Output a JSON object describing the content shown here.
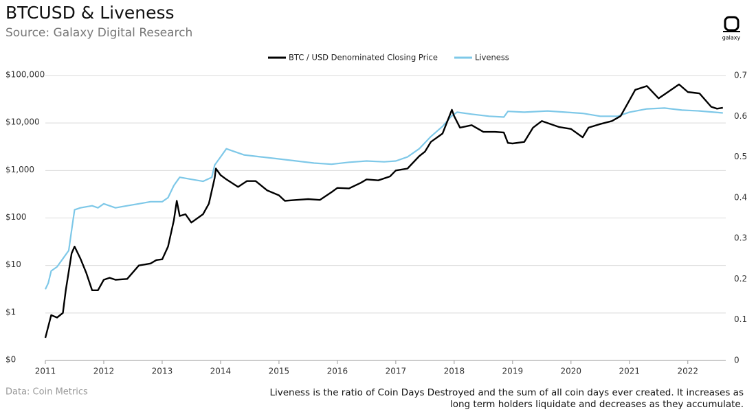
{
  "chart_data": {
    "type": "line",
    "title": "BTCUSD & Liveness",
    "subtitle": "Source: Galaxy Digital Research",
    "logo": "galaxy",
    "source": "Data: Coin Metrics",
    "note": "Liveness is the ratio of Coin Days Destroyed and the sum of all coin days ever created. It increases as long term holders liquidate and decreases as they accumulate.",
    "ylog": true,
    "grid": true,
    "legend": "top",
    "xlim": [
      2011,
      2022.65
    ],
    "xticks": [
      2011,
      2012,
      2013,
      2014,
      2015,
      2016,
      2017,
      2018,
      2019,
      2020,
      2021,
      2022
    ],
    "ylim": [
      0.1,
      100000
    ],
    "yticks": [
      {
        "value": 0.1,
        "label": "$0"
      },
      {
        "value": 1,
        "label": "$1"
      },
      {
        "value": 10,
        "label": "$10"
      },
      {
        "value": 100,
        "label": "$100"
      },
      {
        "value": 1000,
        "label": "$1,000"
      },
      {
        "value": 10000,
        "label": "$10,000"
      },
      {
        "value": 100000,
        "label": "$100,000"
      }
    ],
    "y2lim": [
      0,
      0.7
    ],
    "y2ticks": [
      0,
      0.1,
      0.2,
      0.3,
      0.4,
      0.5,
      0.6,
      0.7
    ],
    "series": [
      {
        "name": "BTC / USD Denominated Closing Price",
        "color": "#000000",
        "x": [
          2011.0,
          2011.1,
          2011.2,
          2011.3,
          2011.35,
          2011.45,
          2011.5,
          2011.6,
          2011.7,
          2011.8,
          2011.9,
          2012.0,
          2012.1,
          2012.2,
          2012.4,
          2012.6,
          2012.8,
          2012.9,
          2013.0,
          2013.1,
          2013.2,
          2013.25,
          2013.3,
          2013.4,
          2013.5,
          2013.7,
          2013.8,
          2013.9,
          2013.92,
          2014.0,
          2014.1,
          2014.3,
          2014.45,
          2014.6,
          2014.8,
          2015.0,
          2015.1,
          2015.3,
          2015.5,
          2015.7,
          2015.9,
          2016.0,
          2016.2,
          2016.4,
          2016.5,
          2016.7,
          2016.9,
          2017.0,
          2017.2,
          2017.4,
          2017.5,
          2017.6,
          2017.8,
          2017.96,
          2018.0,
          2018.1,
          2018.3,
          2018.5,
          2018.7,
          2018.85,
          2018.92,
          2019.0,
          2019.2,
          2019.35,
          2019.5,
          2019.6,
          2019.8,
          2020.0,
          2020.2,
          2020.3,
          2020.5,
          2020.7,
          2020.85,
          2021.0,
          2021.1,
          2021.3,
          2021.5,
          2021.6,
          2021.85,
          2022.0,
          2022.2,
          2022.4,
          2022.5,
          2022.6
        ],
        "values": [
          0.3,
          0.9,
          0.8,
          1.0,
          3,
          18,
          25,
          14,
          7,
          3,
          3,
          5,
          5.5,
          5,
          5.2,
          10,
          11,
          13,
          13.5,
          25,
          90,
          230,
          110,
          120,
          80,
          120,
          200,
          700,
          1100,
          800,
          650,
          450,
          600,
          600,
          380,
          300,
          230,
          240,
          250,
          240,
          350,
          430,
          420,
          550,
          650,
          620,
          750,
          1000,
          1100,
          2000,
          2500,
          4000,
          6000,
          19000,
          14000,
          8000,
          9000,
          6500,
          6500,
          6300,
          3800,
          3700,
          4000,
          8000,
          11000,
          10000,
          8200,
          7500,
          5000,
          8000,
          9500,
          11000,
          14000,
          30000,
          50000,
          60000,
          33000,
          40000,
          65000,
          45000,
          42000,
          22000,
          20000,
          21000
        ]
      },
      {
        "name": "Liveness",
        "color": "#7ec8e8",
        "axis": "y2",
        "x": [
          2011.0,
          2011.05,
          2011.1,
          2011.2,
          2011.3,
          2011.4,
          2011.45,
          2011.5,
          2011.6,
          2011.8,
          2011.9,
          2012.0,
          2012.2,
          2012.4,
          2012.6,
          2012.8,
          2013.0,
          2013.1,
          2013.2,
          2013.3,
          2013.5,
          2013.7,
          2013.85,
          2013.9,
          2014.0,
          2014.1,
          2014.2,
          2014.4,
          2014.7,
          2015.0,
          2015.3,
          2015.6,
          2015.9,
          2016.2,
          2016.5,
          2016.8,
          2017.0,
          2017.2,
          2017.4,
          2017.6,
          2017.8,
          2017.95,
          2018.05,
          2018.3,
          2018.6,
          2018.85,
          2018.92,
          2019.2,
          2019.6,
          2019.9,
          2020.2,
          2020.5,
          2020.8,
          2021.0,
          2021.3,
          2021.6,
          2021.9,
          2022.2,
          2022.6
        ],
        "values": [
          0.175,
          0.19,
          0.22,
          0.23,
          0.25,
          0.27,
          0.32,
          0.37,
          0.375,
          0.38,
          0.375,
          0.385,
          0.375,
          0.38,
          0.385,
          0.39,
          0.39,
          0.4,
          0.43,
          0.45,
          0.445,
          0.44,
          0.45,
          0.48,
          0.5,
          0.52,
          0.515,
          0.505,
          0.5,
          0.495,
          0.49,
          0.485,
          0.482,
          0.487,
          0.49,
          0.488,
          0.49,
          0.5,
          0.52,
          0.55,
          0.575,
          0.6,
          0.61,
          0.605,
          0.6,
          0.598,
          0.612,
          0.61,
          0.613,
          0.61,
          0.607,
          0.6,
          0.6,
          0.61,
          0.618,
          0.62,
          0.615,
          0.613,
          0.608
        ]
      }
    ]
  }
}
